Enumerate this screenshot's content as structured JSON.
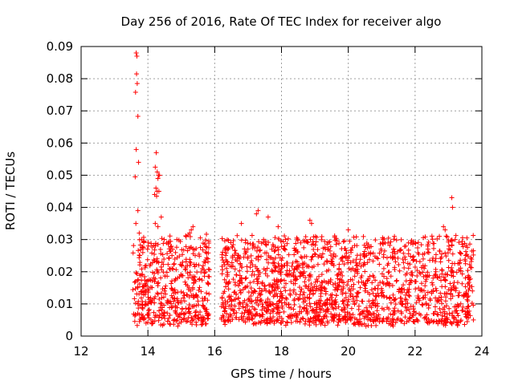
{
  "chart_data": {
    "type": "scatter",
    "title": "Day 256 of 2016, Rate Of TEC Index for receiver algo",
    "xlabel": "GPS time / hours",
    "ylabel": "ROTI / TECUs",
    "xlim": [
      12,
      24
    ],
    "ylim": [
      0,
      0.09
    ],
    "xticks": [
      12,
      14,
      16,
      18,
      20,
      22,
      24
    ],
    "yticks": [
      0,
      0.01,
      0.02,
      0.03,
      0.04,
      0.05,
      0.06,
      0.07,
      0.08,
      0.09
    ],
    "xtick_labels": [
      "12",
      "14",
      "16",
      "18",
      "20",
      "22",
      "24"
    ],
    "ytick_labels": [
      "0",
      "0.01",
      "0.02",
      "0.03",
      "0.04",
      "0.05",
      "0.06",
      "0.07",
      "0.08",
      "0.09"
    ],
    "grid": true,
    "marker": "+",
    "color": "#ff0000",
    "segments": [
      {
        "x_start": 13.55,
        "x_end": 15.85,
        "baseline": 0.013,
        "spread": 0.009
      },
      {
        "x_start": 16.2,
        "x_end": 23.75,
        "baseline": 0.014,
        "spread": 0.009
      }
    ],
    "highlighted_points": [
      {
        "x": 13.65,
        "y": 0.088
      },
      {
        "x": 13.67,
        "y": 0.087
      },
      {
        "x": 13.66,
        "y": 0.0815
      },
      {
        "x": 13.68,
        "y": 0.0785
      },
      {
        "x": 13.63,
        "y": 0.0758
      },
      {
        "x": 13.7,
        "y": 0.0683
      },
      {
        "x": 13.65,
        "y": 0.058
      },
      {
        "x": 13.72,
        "y": 0.054
      },
      {
        "x": 13.62,
        "y": 0.0495
      },
      {
        "x": 13.7,
        "y": 0.039
      },
      {
        "x": 13.64,
        "y": 0.035
      },
      {
        "x": 13.74,
        "y": 0.032
      },
      {
        "x": 14.25,
        "y": 0.057
      },
      {
        "x": 14.22,
        "y": 0.0525
      },
      {
        "x": 14.28,
        "y": 0.051
      },
      {
        "x": 14.32,
        "y": 0.05
      },
      {
        "x": 14.35,
        "y": 0.05
      },
      {
        "x": 14.3,
        "y": 0.049
      },
      {
        "x": 14.24,
        "y": 0.046
      },
      {
        "x": 14.28,
        "y": 0.045
      },
      {
        "x": 14.33,
        "y": 0.045
      },
      {
        "x": 14.2,
        "y": 0.044
      },
      {
        "x": 14.26,
        "y": 0.0435
      },
      {
        "x": 14.4,
        "y": 0.037
      },
      {
        "x": 14.22,
        "y": 0.035
      },
      {
        "x": 14.3,
        "y": 0.034
      },
      {
        "x": 15.35,
        "y": 0.034
      },
      {
        "x": 15.3,
        "y": 0.033
      },
      {
        "x": 15.25,
        "y": 0.032
      },
      {
        "x": 17.3,
        "y": 0.039
      },
      {
        "x": 17.25,
        "y": 0.038
      },
      {
        "x": 17.6,
        "y": 0.037
      },
      {
        "x": 17.9,
        "y": 0.034
      },
      {
        "x": 18.85,
        "y": 0.036
      },
      {
        "x": 18.9,
        "y": 0.035
      },
      {
        "x": 20.0,
        "y": 0.033
      },
      {
        "x": 16.8,
        "y": 0.035
      },
      {
        "x": 23.1,
        "y": 0.043
      },
      {
        "x": 23.12,
        "y": 0.04
      },
      {
        "x": 22.85,
        "y": 0.034
      },
      {
        "x": 22.9,
        "y": 0.033
      },
      {
        "x": 23.2,
        "y": 0.03
      }
    ]
  }
}
